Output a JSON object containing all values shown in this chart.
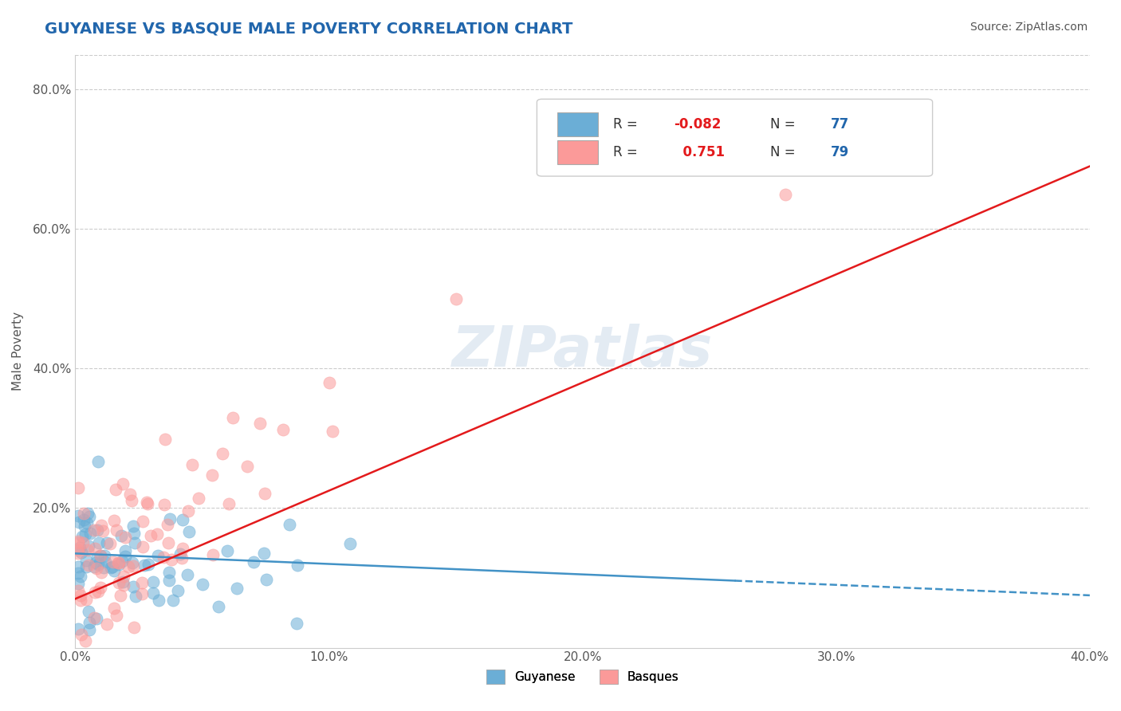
{
  "title": "GUYANESE VS BASQUE MALE POVERTY CORRELATION CHART",
  "source": "Source: ZipAtlas.com",
  "xlabel": "",
  "ylabel": "Male Poverty",
  "xlim": [
    0.0,
    0.4
  ],
  "ylim": [
    0.0,
    0.85
  ],
  "xtick_labels": [
    "0.0%",
    "10.0%",
    "20.0%",
    "30.0%",
    "40.0%"
  ],
  "xtick_vals": [
    0.0,
    0.1,
    0.2,
    0.3,
    0.4
  ],
  "ytick_labels": [
    "20.0%",
    "40.0%",
    "60.0%",
    "80.0%"
  ],
  "ytick_vals": [
    0.2,
    0.4,
    0.6,
    0.8
  ],
  "guyanese_color": "#6baed6",
  "basque_color": "#fb9a99",
  "guyanese_R": -0.082,
  "guyanese_N": 77,
  "basque_R": 0.751,
  "basque_N": 79,
  "guyanese_line_color": "#4292c6",
  "basque_line_color": "#e31a1c",
  "background_color": "#ffffff",
  "grid_color": "#cccccc",
  "title_color": "#2166ac",
  "watermark": "ZIPatlas",
  "legend_R_color": "#e31a1c",
  "legend_N_color": "#2166ac"
}
